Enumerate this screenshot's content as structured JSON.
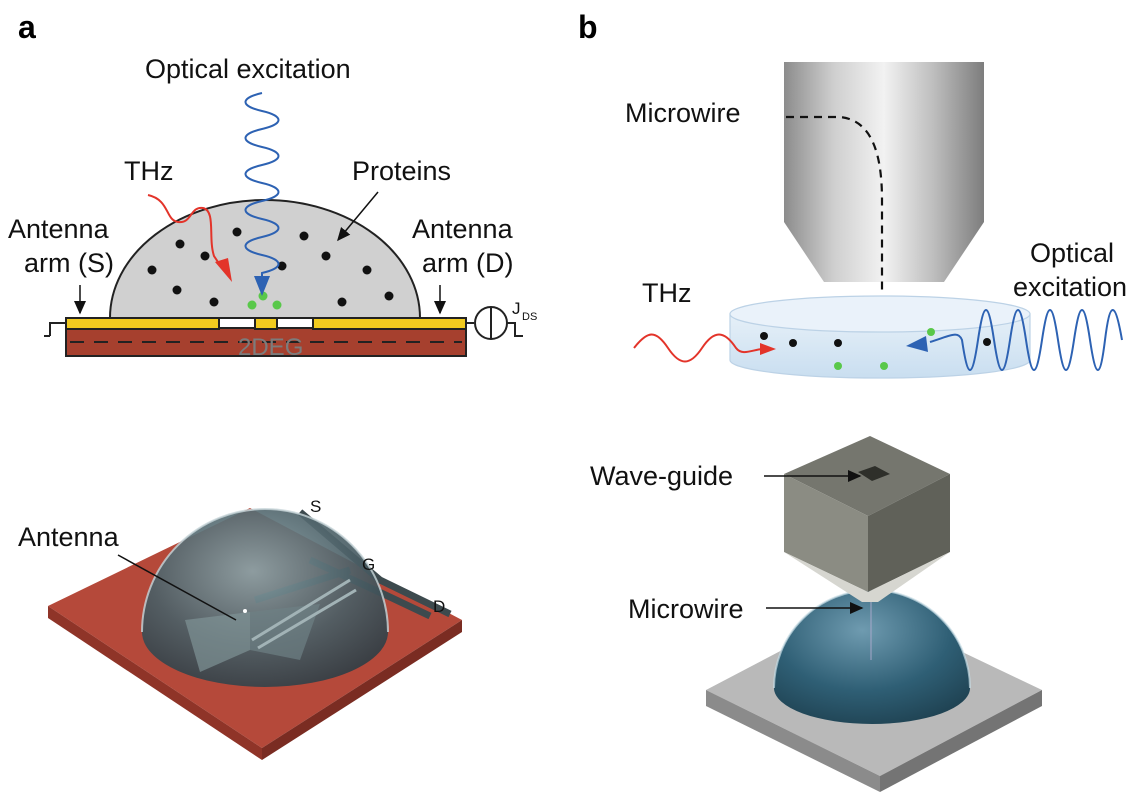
{
  "panel_a": {
    "letter": "a",
    "optical_excitation": "Optical excitation",
    "thz": "THz",
    "proteins": "Proteins",
    "antenna_s_line1": "Antenna",
    "antenna_s_line2": "arm (S)",
    "antenna_d_line1": "Antenna",
    "antenna_d_line2": "arm (D)",
    "current_main": "J",
    "current_sub": "DS",
    "substrate": "2DEG",
    "antenna": "Antenna",
    "terminal_s": "S",
    "terminal_g": "G",
    "terminal_d": "D"
  },
  "panel_b": {
    "letter": "b",
    "microwire_top": "Microwire",
    "optical_line1": "Optical",
    "optical_line2": "excitation",
    "thz": "THz",
    "waveguide": "Wave-guide",
    "microwire_bottom": "Microwire"
  },
  "colors": {
    "gold": "#f2cb1f",
    "substrate": "#a6402e",
    "thz_red": "#e3342a",
    "optical_blue": "#2d62b3",
    "protein_green": "#59c84a",
    "drop_grey": "#d0d0d0"
  }
}
